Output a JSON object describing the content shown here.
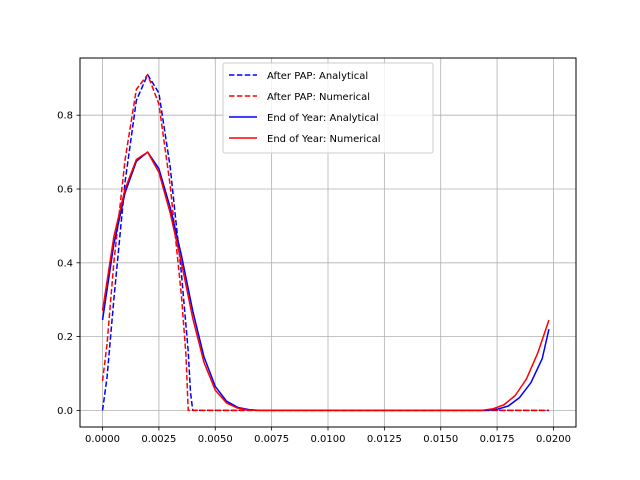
{
  "chart_data": {
    "type": "line",
    "title": "",
    "xlabel": "",
    "ylabel": "",
    "xlim": [
      -0.001,
      0.021
    ],
    "ylim": [
      -0.045,
      0.955
    ],
    "grid": true,
    "legend_position": "top-center",
    "x_ticks": [
      0.0,
      0.0025,
      0.005,
      0.0075,
      0.01,
      0.0125,
      0.015,
      0.0175,
      0.02
    ],
    "x_tick_labels": [
      "0.0000",
      "0.0025",
      "0.0050",
      "0.0075",
      "0.0100",
      "0.0125",
      "0.0150",
      "0.0175",
      "0.0200"
    ],
    "y_ticks": [
      0.0,
      0.2,
      0.4,
      0.6,
      0.8
    ],
    "y_tick_labels": [
      "0.0",
      "0.2",
      "0.4",
      "0.6",
      "0.8"
    ],
    "series": [
      {
        "name": "After PAP: Analytical",
        "color": "#0000ff",
        "style": "dashed",
        "points": [
          [
            0.0,
            0.0
          ],
          [
            0.0002,
            0.09
          ],
          [
            0.0005,
            0.3
          ],
          [
            0.001,
            0.62
          ],
          [
            0.0015,
            0.84
          ],
          [
            0.002,
            0.91
          ],
          [
            0.0025,
            0.86
          ],
          [
            0.003,
            0.66
          ],
          [
            0.0035,
            0.37
          ],
          [
            0.0038,
            0.16
          ],
          [
            0.0039,
            0.05
          ],
          [
            0.004,
            0.0
          ],
          [
            0.006,
            0.0
          ],
          [
            0.01,
            0.0
          ],
          [
            0.015,
            0.0
          ],
          [
            0.0198,
            0.0
          ]
        ]
      },
      {
        "name": "After PAP: Numerical",
        "color": "#ff0000",
        "style": "dashed",
        "points": [
          [
            0.0,
            0.08
          ],
          [
            0.0002,
            0.18
          ],
          [
            0.0005,
            0.4
          ],
          [
            0.001,
            0.68
          ],
          [
            0.0015,
            0.87
          ],
          [
            0.002,
            0.91
          ],
          [
            0.0025,
            0.83
          ],
          [
            0.003,
            0.61
          ],
          [
            0.0035,
            0.31
          ],
          [
            0.0037,
            0.15
          ],
          [
            0.0038,
            0.0
          ],
          [
            0.006,
            0.0
          ],
          [
            0.01,
            0.0
          ],
          [
            0.015,
            0.0
          ],
          [
            0.0198,
            0.0
          ]
        ]
      },
      {
        "name": "End of Year: Analytical",
        "color": "#0000ff",
        "style": "solid",
        "points": [
          [
            0.0,
            0.245
          ],
          [
            0.0005,
            0.45
          ],
          [
            0.001,
            0.59
          ],
          [
            0.0015,
            0.675
          ],
          [
            0.002,
            0.7
          ],
          [
            0.0025,
            0.655
          ],
          [
            0.003,
            0.55
          ],
          [
            0.0035,
            0.42
          ],
          [
            0.004,
            0.27
          ],
          [
            0.0045,
            0.145
          ],
          [
            0.005,
            0.065
          ],
          [
            0.0055,
            0.025
          ],
          [
            0.006,
            0.008
          ],
          [
            0.0065,
            0.002
          ],
          [
            0.007,
            0.0
          ],
          [
            0.017,
            0.0
          ],
          [
            0.0175,
            0.003
          ],
          [
            0.018,
            0.012
          ],
          [
            0.0185,
            0.035
          ],
          [
            0.019,
            0.075
          ],
          [
            0.0195,
            0.14
          ],
          [
            0.0198,
            0.22
          ]
        ]
      },
      {
        "name": "End of Year: Numerical",
        "color": "#ff0000",
        "style": "solid",
        "points": [
          [
            0.0,
            0.27
          ],
          [
            0.0005,
            0.47
          ],
          [
            0.001,
            0.6
          ],
          [
            0.0015,
            0.68
          ],
          [
            0.002,
            0.7
          ],
          [
            0.0025,
            0.645
          ],
          [
            0.003,
            0.535
          ],
          [
            0.0035,
            0.4
          ],
          [
            0.004,
            0.25
          ],
          [
            0.0045,
            0.13
          ],
          [
            0.005,
            0.055
          ],
          [
            0.0055,
            0.02
          ],
          [
            0.006,
            0.006
          ],
          [
            0.0065,
            0.001
          ],
          [
            0.007,
            0.0
          ],
          [
            0.0168,
            0.0
          ],
          [
            0.0173,
            0.004
          ],
          [
            0.0178,
            0.015
          ],
          [
            0.0183,
            0.04
          ],
          [
            0.0188,
            0.085
          ],
          [
            0.0193,
            0.155
          ],
          [
            0.0198,
            0.245
          ]
        ]
      }
    ]
  }
}
